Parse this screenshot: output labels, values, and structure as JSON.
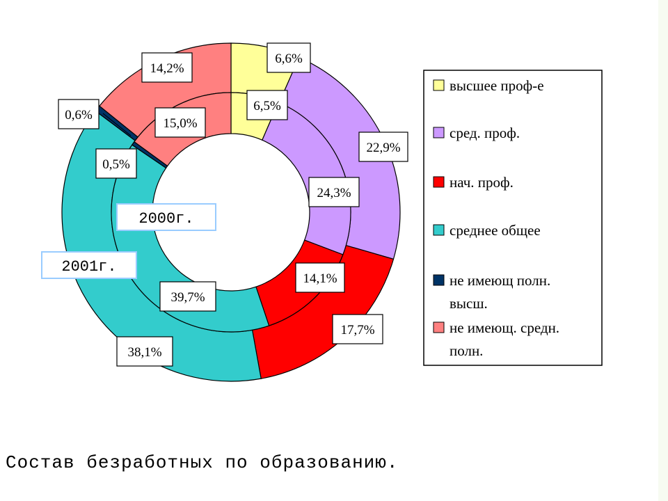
{
  "chart_data": {
    "type": "doughnut",
    "title": "Состав безработных по образованию.",
    "categories": [
      "высшее проф-е",
      "сред. проф.",
      "нач. проф.",
      "среднее общее",
      "не имеющ полн. высш.",
      "не имеющ. средн. полн."
    ],
    "colors": [
      "#ffff99",
      "#cc99ff",
      "#ff0000",
      "#33cccc",
      "#003366",
      "#ff8080"
    ],
    "series": [
      {
        "name": "2001г.",
        "values": [
          6.6,
          22.9,
          17.7,
          38.1,
          0.6,
          14.2
        ],
        "labels": [
          "6,6%",
          "22,9%",
          "17,7%",
          "38,1%",
          "0,6%",
          "14,2%"
        ]
      },
      {
        "name": "2000г.",
        "values": [
          6.5,
          24.3,
          14.1,
          39.7,
          0.5,
          15.0
        ],
        "labels": [
          "6,5%",
          "24,3%",
          "14,1%",
          "39,7%",
          "0,5%",
          "15,0%"
        ]
      }
    ],
    "legend": {
      "position": "right",
      "lines": [
        [
          "высшее проф-е"
        ],
        [
          "сред. проф."
        ],
        [
          "нач. проф."
        ],
        [
          "среднее общее"
        ],
        [
          "не имеющ полн.",
          "высш."
        ],
        [
          "не имеющ. средн.",
          "полн."
        ]
      ]
    }
  }
}
